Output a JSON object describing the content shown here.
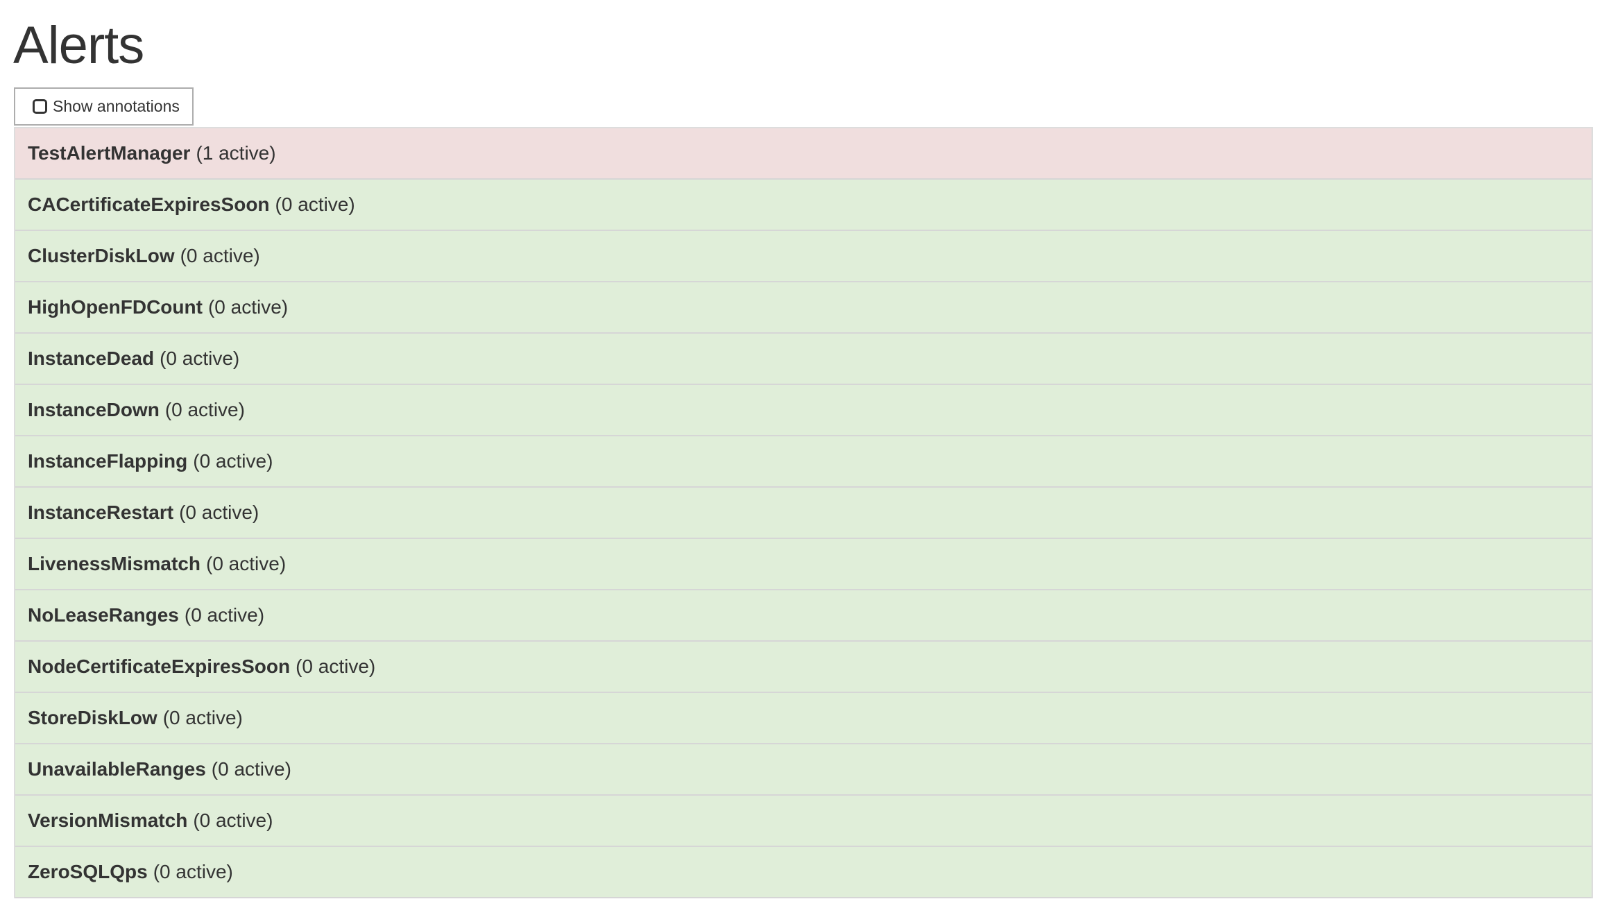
{
  "page_title": "Alerts",
  "show_annotations": {
    "label": "Show annotations",
    "checked": false
  },
  "colors": {
    "firing": "#f0dede",
    "inactive": "#e0eed9"
  },
  "alerts": [
    {
      "name": "TestAlertManager",
      "count": "(1 active)",
      "state": "firing"
    },
    {
      "name": "CACertificateExpiresSoon",
      "count": "(0 active)",
      "state": "inactive"
    },
    {
      "name": "ClusterDiskLow",
      "count": "(0 active)",
      "state": "inactive"
    },
    {
      "name": "HighOpenFDCount",
      "count": "(0 active)",
      "state": "inactive"
    },
    {
      "name": "InstanceDead",
      "count": "(0 active)",
      "state": "inactive"
    },
    {
      "name": "InstanceDown",
      "count": "(0 active)",
      "state": "inactive"
    },
    {
      "name": "InstanceFlapping",
      "count": "(0 active)",
      "state": "inactive"
    },
    {
      "name": "InstanceRestart",
      "count": "(0 active)",
      "state": "inactive"
    },
    {
      "name": "LivenessMismatch",
      "count": "(0 active)",
      "state": "inactive"
    },
    {
      "name": "NoLeaseRanges",
      "count": "(0 active)",
      "state": "inactive"
    },
    {
      "name": "NodeCertificateExpiresSoon",
      "count": "(0 active)",
      "state": "inactive"
    },
    {
      "name": "StoreDiskLow",
      "count": "(0 active)",
      "state": "inactive"
    },
    {
      "name": "UnavailableRanges",
      "count": "(0 active)",
      "state": "inactive"
    },
    {
      "name": "VersionMismatch",
      "count": "(0 active)",
      "state": "inactive"
    },
    {
      "name": "ZeroSQLQps",
      "count": "(0 active)",
      "state": "inactive"
    }
  ]
}
